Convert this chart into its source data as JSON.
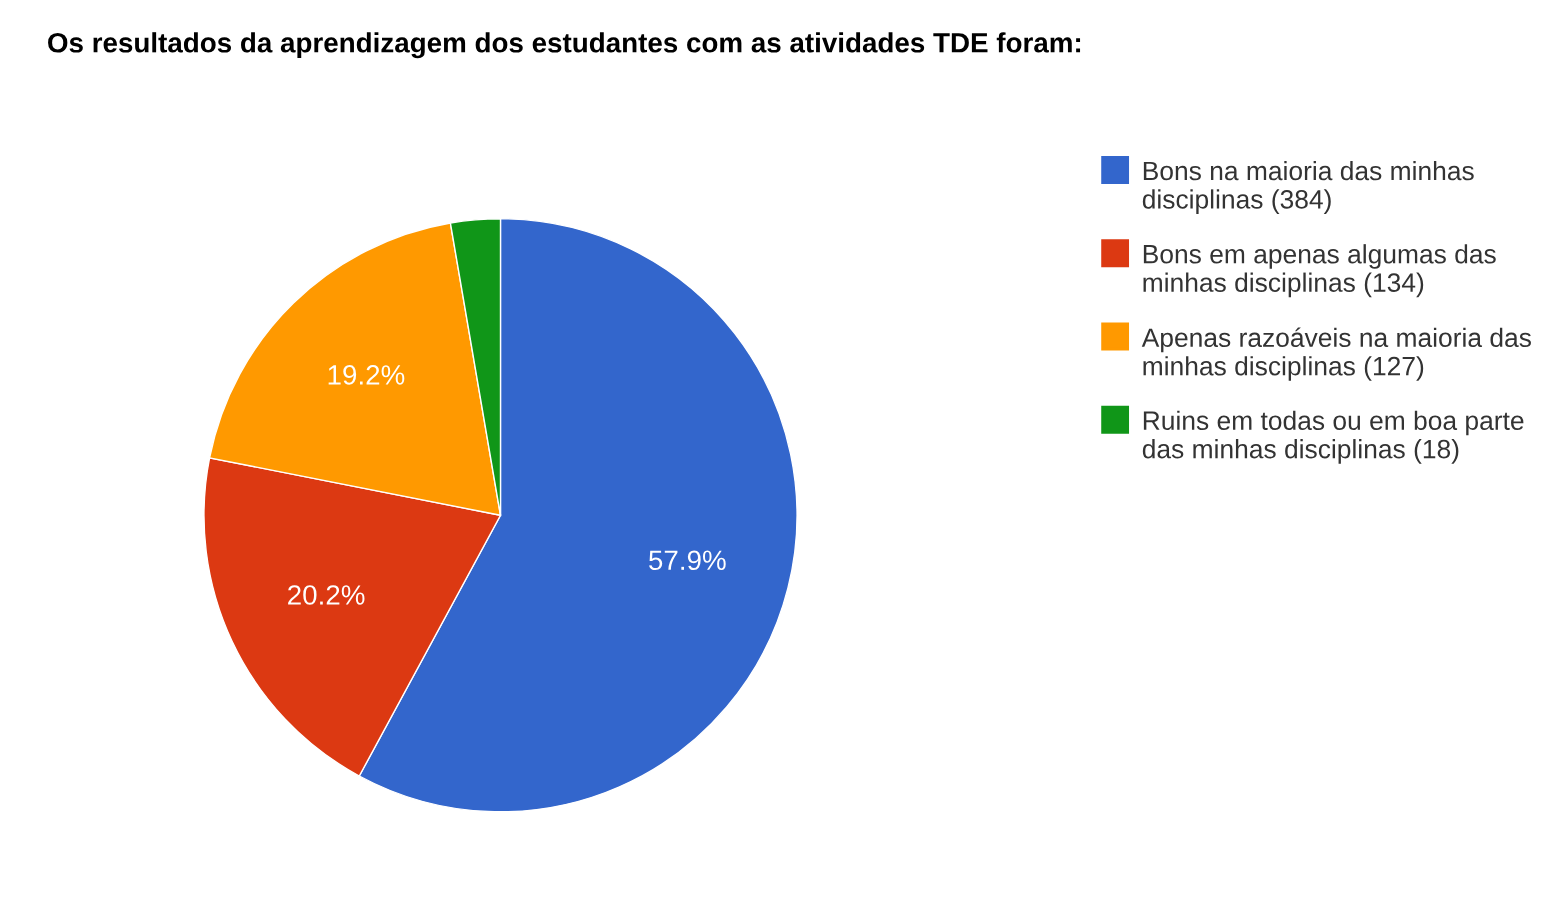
{
  "chart_data": {
    "type": "pie",
    "title": "Os resultados da aprendizagem dos estudantes com as atividades TDE foram:",
    "categories": [
      "Bons na maioria das minhas disciplinas (384)",
      "Bons em apenas algumas das minhas disciplinas (134)",
      "Apenas razoáveis na maioria das minhas disciplinas (127)",
      "Ruins em todas ou em boa parte das minhas disciplinas (18)"
    ],
    "values": [
      57.9,
      20.2,
      19.2,
      2.7
    ],
    "colors": [
      "#3366cc",
      "#dc3912",
      "#ff9900",
      "#109618"
    ],
    "value_labels": [
      "57.9%",
      "20.2%",
      "19.2%",
      null
    ],
    "legend": "right"
  }
}
